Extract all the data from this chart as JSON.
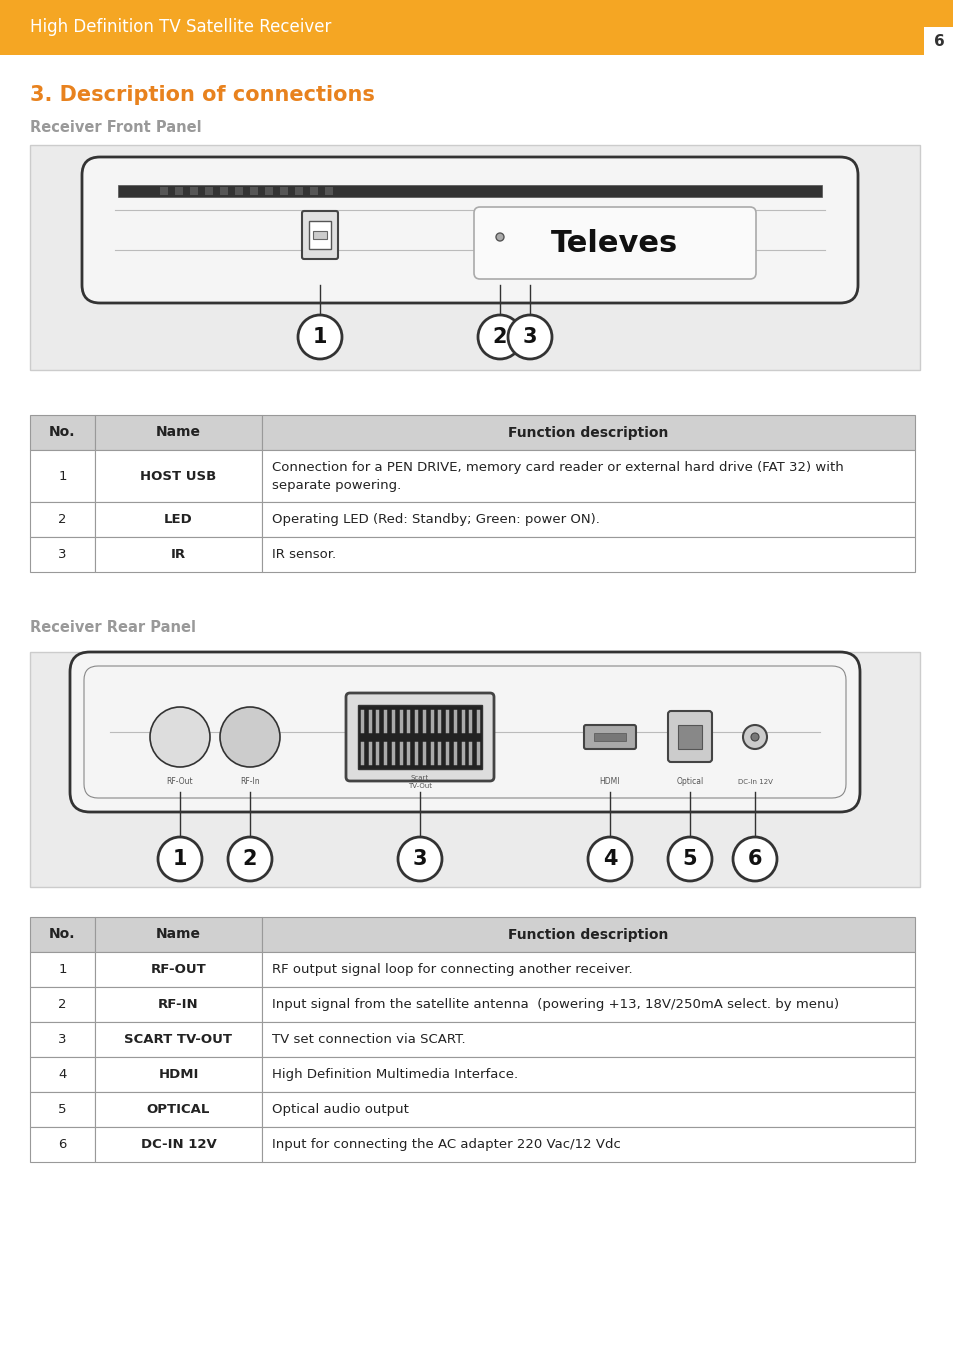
{
  "header_color": "#F5A623",
  "header_text": "High Definition TV Satellite Receiver",
  "header_text_color": "#FFFFFF",
  "page_number": "6",
  "page_bg": "#FFFFFF",
  "section_title": "3. Description of connections",
  "section_title_color": "#E8821E",
  "front_panel_label": "Receiver Front Panel",
  "rear_panel_label": "Receiver Rear Panel",
  "panel_label_color": "#999999",
  "front_table_header": [
    "No.",
    "Name",
    "Function description"
  ],
  "front_table_rows": [
    [
      "1",
      "HOST USB",
      "Connection for a PEN DRIVE, memory card reader or external hard drive (FAT 32) with\nseparate powering."
    ],
    [
      "2",
      "LED",
      "Operating LED (Red: Standby; Green: power ON)."
    ],
    [
      "3",
      "IR",
      "IR sensor."
    ]
  ],
  "rear_table_header": [
    "No.",
    "Name",
    "Function description"
  ],
  "rear_table_rows": [
    [
      "1",
      "RF-OUT",
      "RF output signal loop for connecting another receiver."
    ],
    [
      "2",
      "RF-IN",
      "Input signal from the satellite antenna  (powering +13, 18V/250mA select. by menu)"
    ],
    [
      "3",
      "SCART TV-OUT",
      "TV set connection via SCART."
    ],
    [
      "4",
      "HDMI",
      "High Definition Multimedia Interface."
    ],
    [
      "5",
      "OPTICAL",
      "Optical audio output"
    ],
    [
      "6",
      "DC-IN 12V",
      "Input for connecting the AC adapter 220 Vac/12 Vdc"
    ]
  ],
  "table_header_bg": "#D0D0D0",
  "table_border_color": "#999999",
  "diagram_bg": "#EBEBEB",
  "diagram_border_color": "#CCCCCC"
}
